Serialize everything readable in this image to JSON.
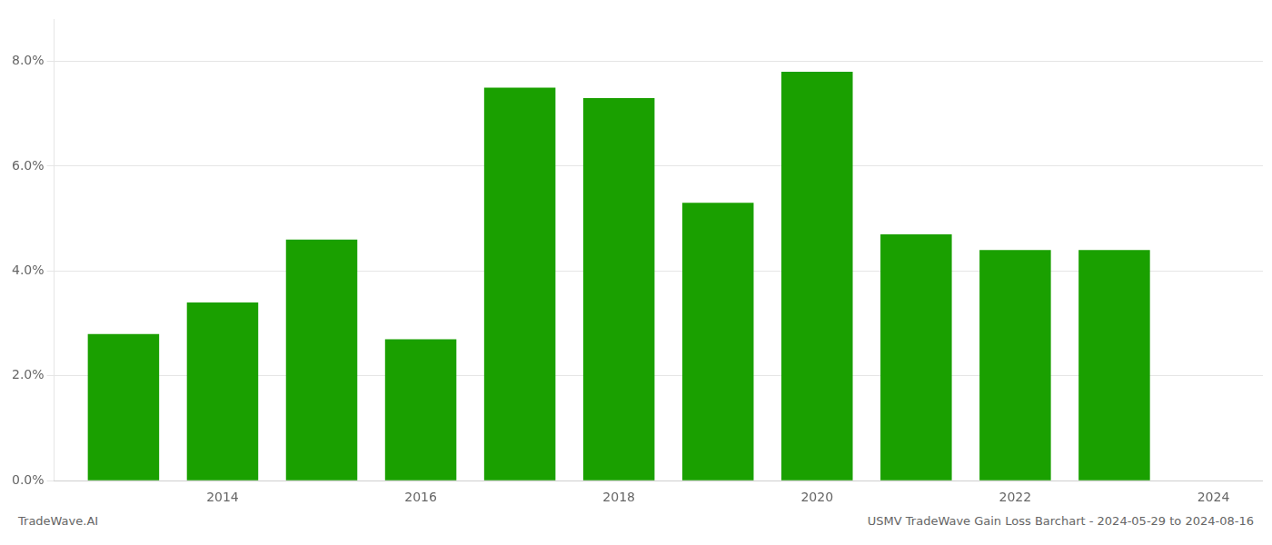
{
  "chart_data": {
    "type": "bar",
    "x": [
      2013,
      2014,
      2015,
      2016,
      2017,
      2018,
      2019,
      2020,
      2021,
      2022,
      2023
    ],
    "values": [
      0.028,
      0.034,
      0.046,
      0.027,
      0.075,
      0.073,
      0.053,
      0.078,
      0.047,
      0.044,
      0.044
    ],
    "color": "#1aa000",
    "xlim": [
      2012.3,
      2024.5
    ],
    "xticks": [
      2014,
      2016,
      2018,
      2020,
      2022,
      2024
    ],
    "ylim": [
      0,
      0.088
    ],
    "yticks": [
      {
        "value": 0,
        "label": "0.0%"
      },
      {
        "value": 0.02,
        "label": "2.0%"
      },
      {
        "value": 0.04,
        "label": "4.0%"
      },
      {
        "value": 0.06,
        "label": "6.0%"
      },
      {
        "value": 0.08,
        "label": "8.0%"
      }
    ],
    "grid": true,
    "annotations": [
      "TradeWave.AI",
      "USMV TradeWave Gain Loss Barchart - 2024-05-29 to 2024-08-16"
    ]
  }
}
